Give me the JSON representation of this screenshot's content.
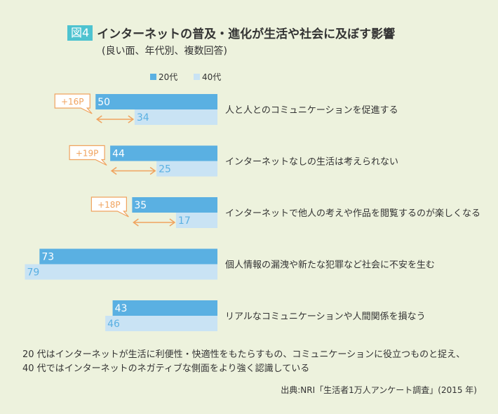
{
  "header": {
    "figure_label": "図4",
    "title": "インターネットの普及・進化が生活や社会に及ぼす影響",
    "subtitle": "(良い面、年代別、複数回答)"
  },
  "chart_data": {
    "type": "bar",
    "orientation": "horizontal",
    "categories": [
      "人と人とのコミュニケーションを促進する",
      "インターネットなしの生活は考えられない",
      "インターネットで他人の考えや作品を閲覧するのが楽しくなる",
      "個人情報の漏洩や新たな犯罪など社会に不安を生む",
      "リアルなコミュニケーションや人間関係を損なう"
    ],
    "series": [
      {
        "name": "20代",
        "values": [
          50,
          44,
          35,
          73,
          43
        ],
        "color": "#5ab0e2"
      },
      {
        "name": "40代",
        "values": [
          34,
          25,
          17,
          79,
          46
        ],
        "color": "#c9e3f4"
      }
    ],
    "differences": [
      "+16P",
      "+19P",
      "+18P",
      null,
      null
    ],
    "legend_position": "top",
    "difference_color": "#f0a35e",
    "xlim": [
      0,
      100
    ]
  },
  "notes": {
    "line1": "20 代はインターネットが生活に利便性・快適性をもたらすもの、コミュニケーションに役立つものと捉え、",
    "line2": "40 代ではインターネットのネガティブな側面をより強く認識している"
  },
  "source": "出典:NRI「生活者1万人アンケート調査」(2015 年)"
}
